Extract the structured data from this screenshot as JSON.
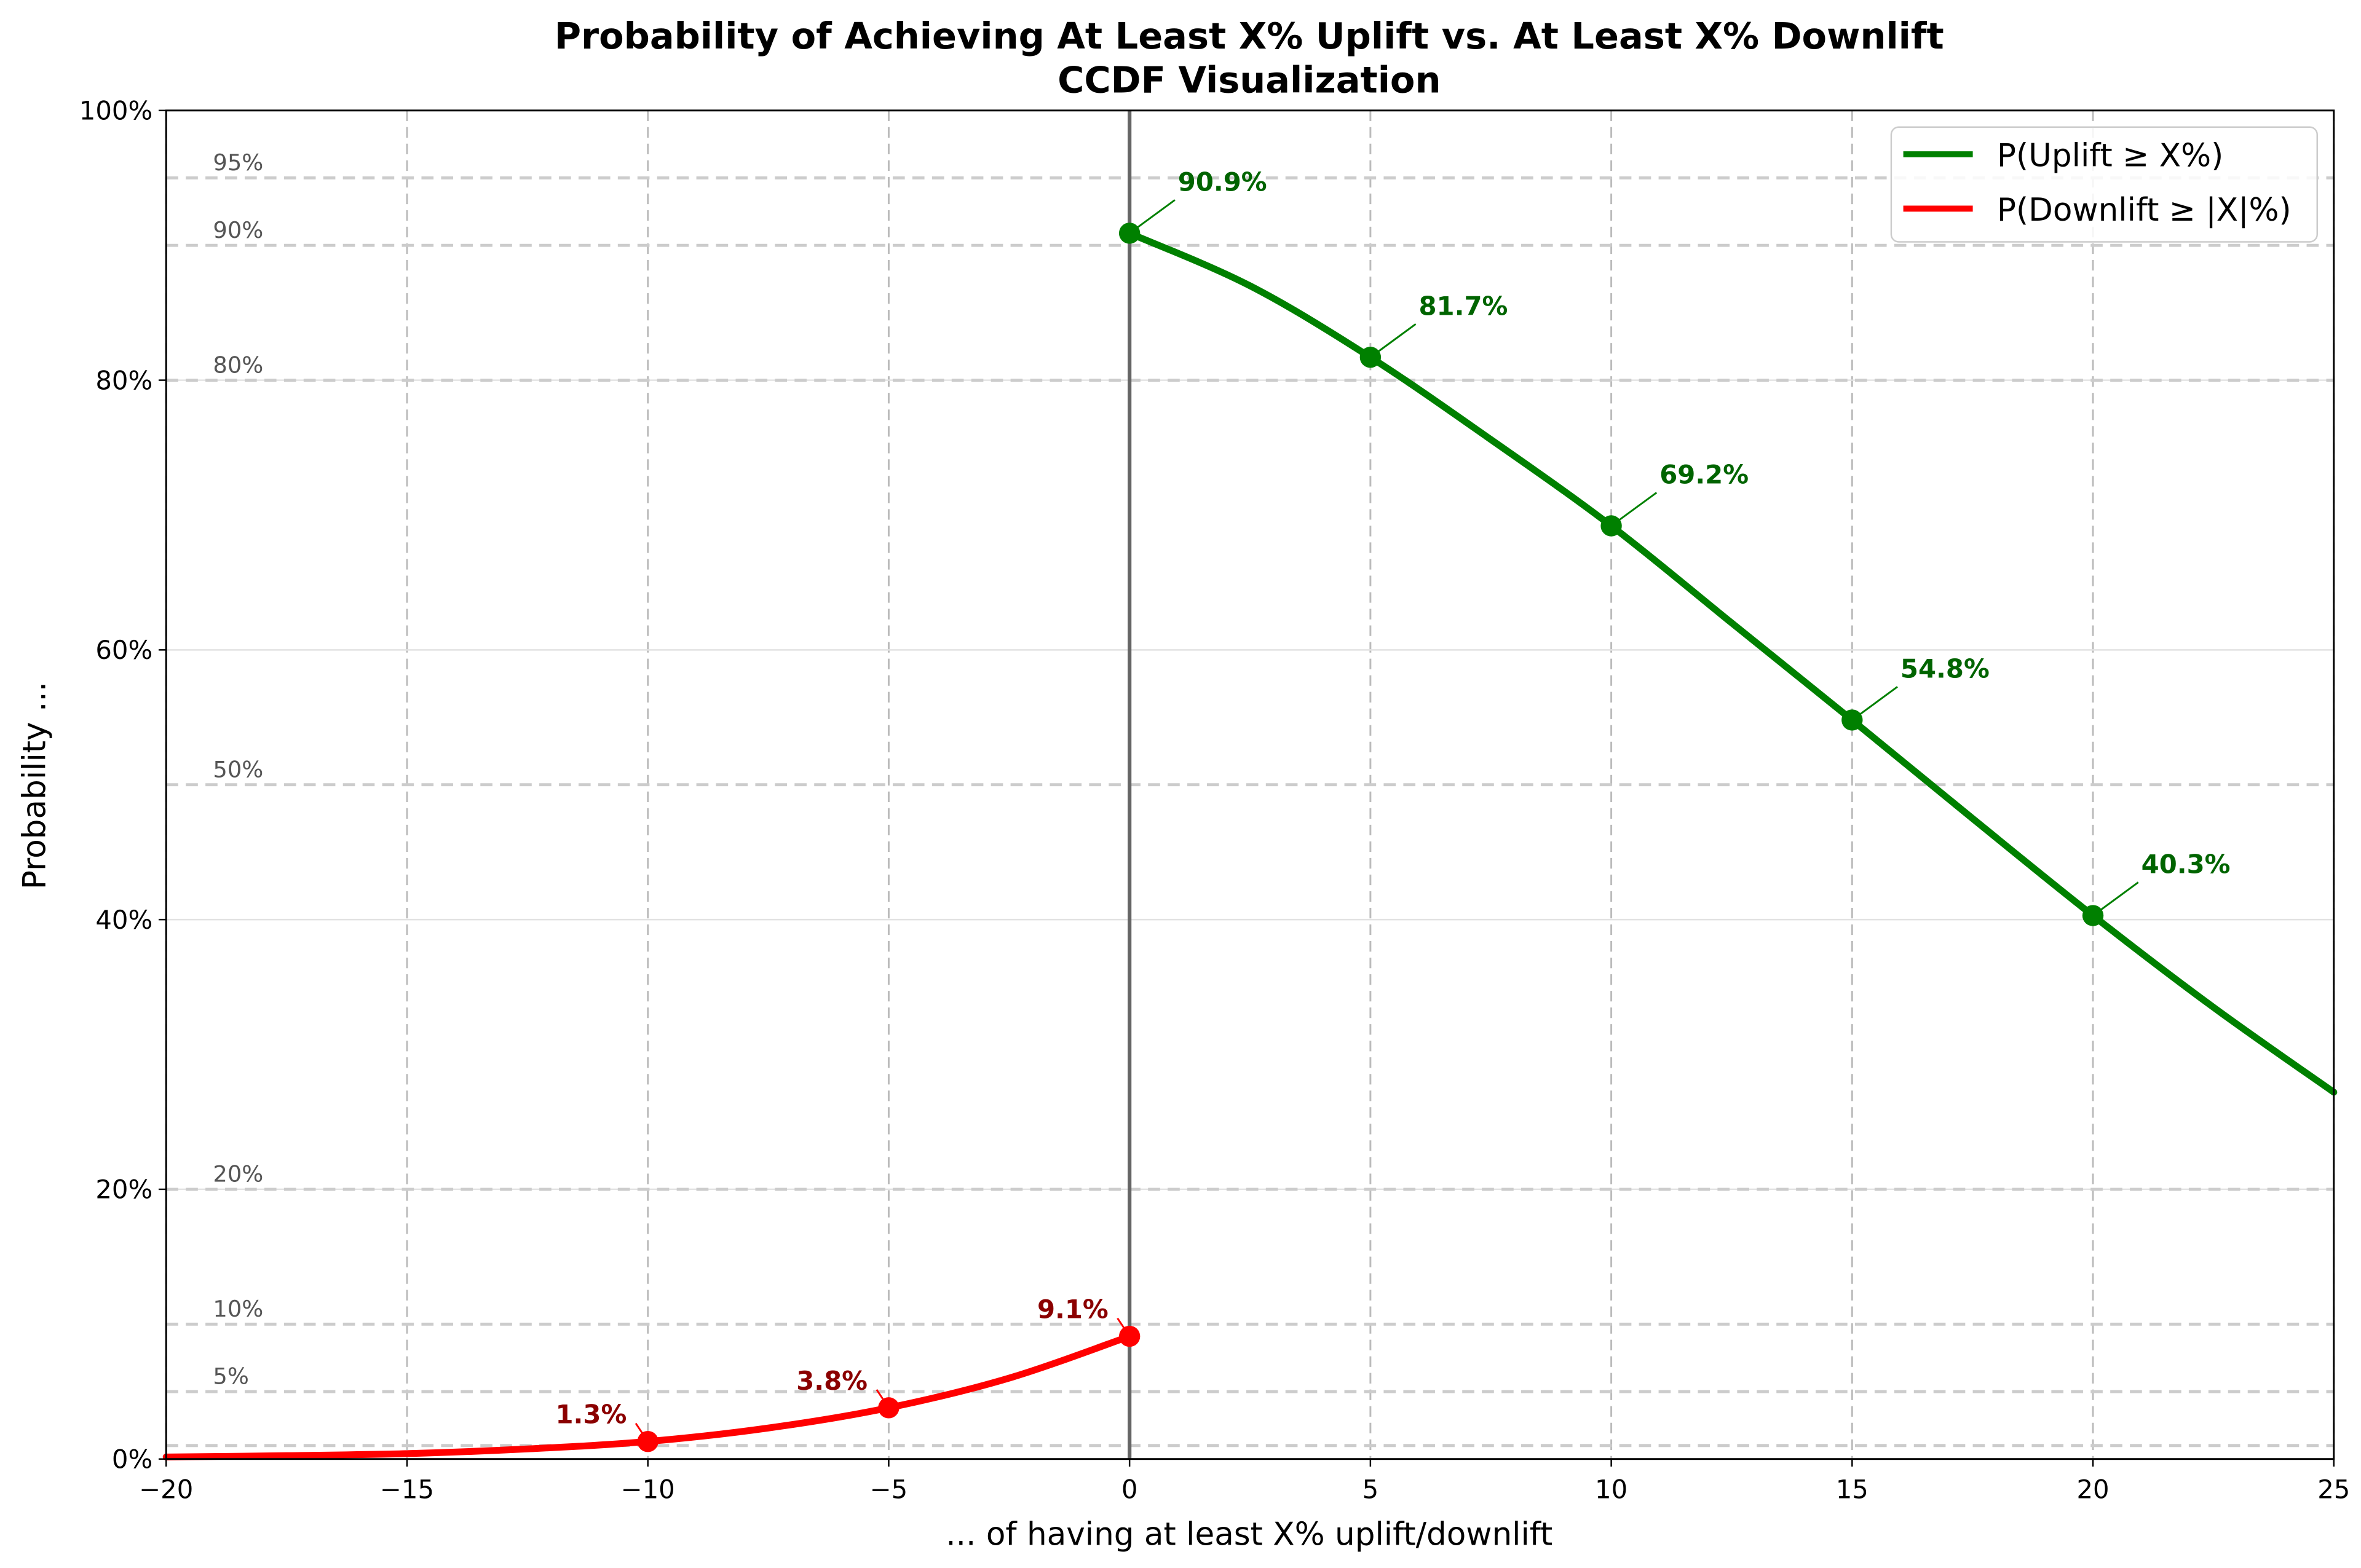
{
  "chart_data": {
    "type": "line",
    "title": "Probability of Achieving At Least X% Uplift vs. At Least X% Downlift",
    "subtitle": "CCDF Visualization",
    "xlabel": "... of having at least X% uplift/downlift",
    "ylabel": "Probability ...",
    "xlim": [
      -20,
      25
    ],
    "ylim": [
      0,
      100
    ],
    "x_ticks": [
      "−20",
      "−15",
      "−10",
      "−5",
      "0",
      "5",
      "10",
      "15",
      "20",
      "25"
    ],
    "x_tick_values": [
      -20,
      -15,
      -10,
      -5,
      0,
      5,
      10,
      15,
      20,
      25
    ],
    "y_ticks": [
      "0%",
      "20%",
      "40%",
      "60%",
      "80%",
      "100%"
    ],
    "y_tick_values": [
      0,
      20,
      40,
      60,
      80,
      100
    ],
    "grid": true,
    "reference_lines": [
      {
        "value": 95,
        "label": "95%"
      },
      {
        "value": 90,
        "label": "90%"
      },
      {
        "value": 80,
        "label": "80%"
      },
      {
        "value": 50,
        "label": "50%"
      },
      {
        "value": 20,
        "label": "20%"
      },
      {
        "value": 10,
        "label": "10%"
      },
      {
        "value": 5,
        "label": "5%"
      },
      {
        "value": 1,
        "label": ""
      }
    ],
    "vertical_line_x": 0,
    "legend_position": "top-right",
    "series": [
      {
        "name": "P(Uplift ≥ X%)",
        "color": "#008000",
        "label_color": "#006400",
        "x": [
          0,
          2.5,
          5,
          7.5,
          10,
          12.5,
          15,
          17.5,
          20,
          22.5,
          25
        ],
        "y": [
          90.9,
          87.0,
          81.7,
          75.6,
          69.2,
          62.0,
          54.8,
          47.5,
          40.3,
          33.5,
          27.2
        ],
        "markers": [
          {
            "x": 0,
            "y": 90.9,
            "label": "90.9%"
          },
          {
            "x": 5,
            "y": 81.7,
            "label": "81.7%"
          },
          {
            "x": 10,
            "y": 69.2,
            "label": "69.2%"
          },
          {
            "x": 15,
            "y": 54.8,
            "label": "54.8%"
          },
          {
            "x": 20,
            "y": 40.3,
            "label": "40.3%"
          }
        ]
      },
      {
        "name": "P(Downlift ≥ |X|%)",
        "color": "#ff0000",
        "label_color": "#8b0000",
        "x": [
          -20,
          -17.5,
          -15,
          -12.5,
          -10,
          -7.5,
          -5,
          -2.5,
          0
        ],
        "y": [
          0.15,
          0.25,
          0.4,
          0.75,
          1.3,
          2.3,
          3.8,
          6.0,
          9.1
        ],
        "markers": [
          {
            "x": -10,
            "y": 1.3,
            "label": "1.3%"
          },
          {
            "x": -5,
            "y": 3.8,
            "label": "3.8%"
          },
          {
            "x": 0,
            "y": 9.1,
            "label": "9.1%"
          }
        ]
      }
    ]
  }
}
